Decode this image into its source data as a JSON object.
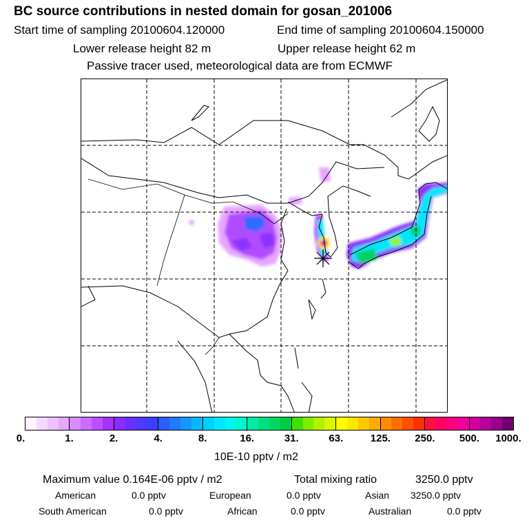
{
  "header": {
    "title": "BC  source contributions in nested domain for gosan_201006",
    "start": "Start time of sampling 20100604.120000",
    "end": "End time of sampling 20100604.150000",
    "lower": "Lower release height   82 m",
    "upper": "Upper release height   62 m",
    "note": "Passive tracer used, meteorological data are from ECMWF"
  },
  "colorbar": {
    "ticks": [
      "0.",
      "1.",
      "2.",
      "4.",
      "8.",
      "16.",
      "31.",
      "63.",
      "125.",
      "250.",
      "500.",
      "1000."
    ],
    "unit": "10E-10 pptv / m2",
    "segments": [
      [
        "#fff4ff",
        "#f5d8ff",
        "#eec0ff",
        "#e4a8ff"
      ],
      [
        "#d98cff",
        "#cc6cff",
        "#bc4eff",
        "#a630ff"
      ],
      [
        "#8a2cff",
        "#6a30ff",
        "#5038ff",
        "#3a40ff"
      ],
      [
        "#2d5cff",
        "#1e7aff",
        "#1496ff",
        "#0cb4ff"
      ],
      [
        "#00d2ff",
        "#00e8ff",
        "#00f5f0",
        "#00f5d0"
      ],
      [
        "#00eaa8",
        "#00e080",
        "#00d860",
        "#00cc40"
      ],
      [
        "#40e000",
        "#80ec00",
        "#b0f200",
        "#d8f800"
      ],
      [
        "#ffff00",
        "#ffe600",
        "#ffc800",
        "#ffaa00"
      ],
      [
        "#ff8c00",
        "#ff6e00",
        "#ff5000",
        "#ff3000"
      ],
      [
        "#ff1040",
        "#ff0064",
        "#ff0080",
        "#f0009a"
      ],
      [
        "#d200a0",
        "#b4009c",
        "#96008c",
        "#6e0070"
      ]
    ]
  },
  "footer": {
    "max": "Maximum value  0.164E-06 pptv / m2",
    "total_label": "Total mixing ratio",
    "total_value": "3250.0 pptv",
    "american_label": "American",
    "american_value": "0.0 pptv",
    "european_label": "European",
    "european_value": "0.0 pptv",
    "asian_label": "Asian",
    "asian_value": "3250.0 pptv",
    "samerican_label": "South American",
    "samerican_value": "0.0 pptv",
    "african_label": "African",
    "african_value": "0.0 pptv",
    "australian_label": "Australian",
    "australian_value": "0.0 pptv"
  },
  "map": {
    "receptor_marker": "star-icon",
    "colors": {
      "lilac": "#e6a6ff",
      "violet": "#b24cff",
      "purple": "#8c32ff",
      "blue": "#2e6cff",
      "cyan": "#00e6ff",
      "green": "#00d060",
      "lime": "#9ef200",
      "yellow": "#ffe600",
      "red": "#ff2030",
      "magenta": "#d000a0"
    }
  }
}
